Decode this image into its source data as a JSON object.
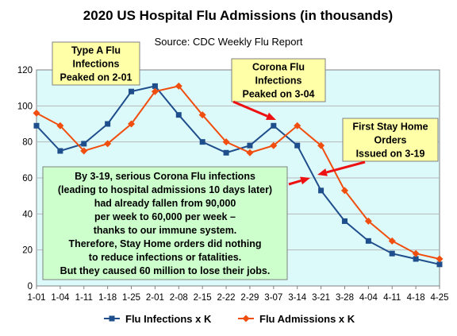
{
  "chart_data": {
    "type": "line",
    "title": "2020 US Hospital Flu Admissions (in thousands)",
    "subtitle": "Source: CDC Weekly Flu Report",
    "categories": [
      "1-01",
      "1-04",
      "1-11",
      "1-18",
      "1-25",
      "2-01",
      "2-08",
      "2-15",
      "2-22",
      "2-29",
      "3-07",
      "3-14",
      "3-21",
      "3-28",
      "4-04",
      "4-11",
      "4-18",
      "4-25"
    ],
    "ylim": [
      0,
      120
    ],
    "yticks": [
      0,
      20,
      40,
      60,
      80,
      100,
      120
    ],
    "grid": true,
    "legend_position": "bottom",
    "series": [
      {
        "name": "Flu Infections x K",
        "color": "#1f4e8c",
        "marker": "square",
        "values": [
          89,
          75,
          79,
          90,
          108,
          111,
          95,
          80,
          74,
          78,
          89,
          78,
          53,
          36,
          25,
          18,
          15,
          12
        ]
      },
      {
        "name": "Flu Admissions x K",
        "color": "#f04e0f",
        "marker": "diamond",
        "values": [
          96,
          89,
          75,
          79,
          90,
          108,
          111,
          95,
          80,
          74,
          78,
          89,
          78,
          53,
          36,
          25,
          18,
          15
        ]
      }
    ],
    "annotations": [
      {
        "id": "type-a",
        "lines": [
          "Type A Flu",
          "Infections",
          "Peaked on 2-01"
        ],
        "fill": "#ffffa8"
      },
      {
        "id": "corona",
        "lines": [
          "Corona Flu",
          "Infections",
          "Peaked on 3-04"
        ],
        "fill": "#ffffa8"
      },
      {
        "id": "stay-home",
        "lines": [
          "First Stay Home",
          "Orders",
          "Issued on 3-19"
        ],
        "fill": "#ffffa8"
      },
      {
        "id": "summary",
        "fill": "#ccffcc",
        "lines": [
          "By 3-19, serious Corona Flu infections",
          "(leading to hospital admissions 10 days later)",
          "had already fallen from 90,000",
          "per week to 60,000 per week –",
          "thanks to our immune system.",
          "Therefore, Stay Home orders did nothing",
          "to reduce infections or fatalities.",
          "But they caused 60 million to lose their jobs."
        ]
      }
    ],
    "colors": {
      "plot_background": "#ddfafa",
      "gridline": "#b8b8b8",
      "arrow": "#ee1111",
      "annotation_border": "#808080"
    }
  }
}
